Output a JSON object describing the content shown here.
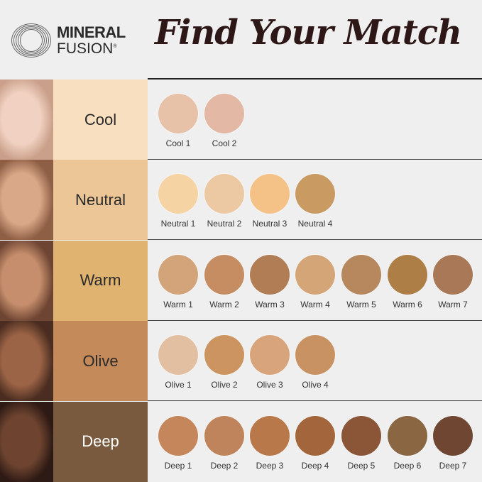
{
  "brand": {
    "line1": "MINERAL",
    "line2": "FUSION",
    "mark": "®"
  },
  "title": "Find Your Match",
  "rows": [
    {
      "label": "Cool",
      "bg": "#f7dfc0",
      "text": "#2a2a2a",
      "face": [
        "#f1d2c2",
        "#caa08a"
      ],
      "shades": [
        {
          "name": "Cool 1",
          "color": "#e8c2a8"
        },
        {
          "name": "Cool 2",
          "color": "#e3b9a6"
        }
      ]
    },
    {
      "label": "Neutral",
      "bg": "#edc698",
      "text": "#2a2a2a",
      "face": [
        "#d9a888",
        "#8e5e45"
      ],
      "shades": [
        {
          "name": "Neutral 1",
          "color": "#f6d3a2"
        },
        {
          "name": "Neutral 2",
          "color": "#ecc9a2"
        },
        {
          "name": "Neutral 3",
          "color": "#f4c287"
        },
        {
          "name": "Neutral 4",
          "color": "#c99a62"
        }
      ]
    },
    {
      "label": "Warm",
      "bg": "#e0b470",
      "text": "#2a2a2a",
      "face": [
        "#c68e6c",
        "#6e4533"
      ],
      "shades": [
        {
          "name": "Warm 1",
          "color": "#d3a47a"
        },
        {
          "name": "Warm 2",
          "color": "#c68d63"
        },
        {
          "name": "Warm 3",
          "color": "#b07d55"
        },
        {
          "name": "Warm 4",
          "color": "#d4a577"
        },
        {
          "name": "Warm 5",
          "color": "#b7875e"
        },
        {
          "name": "Warm 6",
          "color": "#ae7e47"
        },
        {
          "name": "Warm 7",
          "color": "#a87857"
        }
      ]
    },
    {
      "label": "Olive",
      "bg": "#c48a5a",
      "text": "#2a2a2a",
      "face": [
        "#9c6446",
        "#4a2c20"
      ],
      "shades": [
        {
          "name": "Olive 1",
          "color": "#e3bfa2"
        },
        {
          "name": "Olive 2",
          "color": "#cb9460"
        },
        {
          "name": "Olive 3",
          "color": "#d7a47b"
        },
        {
          "name": "Olive 4",
          "color": "#c99262"
        }
      ]
    },
    {
      "label": "Deep",
      "bg": "#7a5a3e",
      "text": "#ffffff",
      "face": [
        "#6e4430",
        "#2e1a14"
      ],
      "shades": [
        {
          "name": "Deep 1",
          "color": "#c4865a"
        },
        {
          "name": "Deep 2",
          "color": "#c0845d"
        },
        {
          "name": "Deep 3",
          "color": "#b87849"
        },
        {
          "name": "Deep 4",
          "color": "#a3663c"
        },
        {
          "name": "Deep 5",
          "color": "#8a5637"
        },
        {
          "name": "Deep 6",
          "color": "#8a6642"
        },
        {
          "name": "Deep 7",
          "color": "#6e4632"
        }
      ]
    }
  ]
}
